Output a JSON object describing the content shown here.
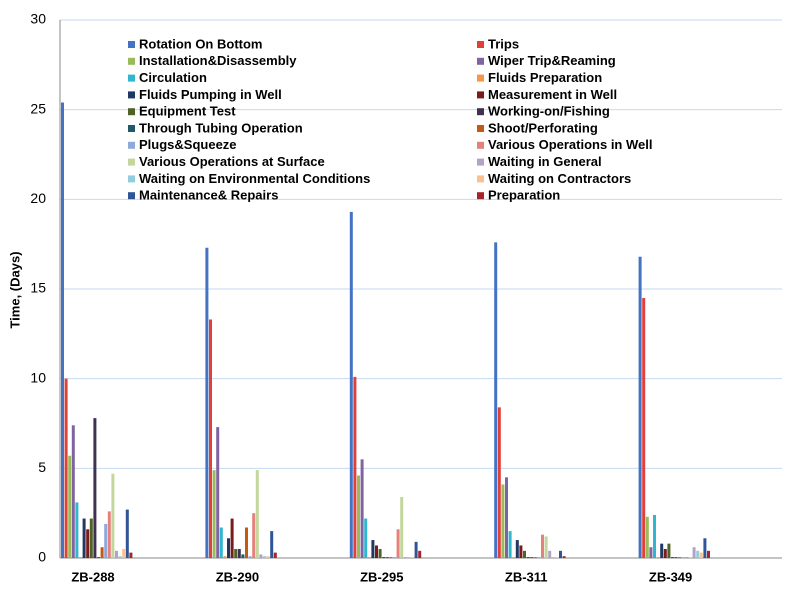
{
  "chart_data": {
    "type": "bar",
    "y_label": "Time, (Days)",
    "categories": [
      "ZB-288",
      "ZB-290",
      "ZB-295",
      "ZB-311",
      "ZB-349"
    ],
    "ylim": [
      0,
      30
    ],
    "yticks": [
      0,
      5,
      10,
      15,
      20,
      25,
      30
    ],
    "grid": true,
    "series": [
      {
        "name": "Rotation On Bottom",
        "color": "#4472c4",
        "values": [
          25.4,
          17.3,
          19.3,
          17.6,
          16.8
        ]
      },
      {
        "name": "Trips",
        "color": "#e0403a",
        "values": [
          10,
          13.3,
          10.1,
          8.4,
          14.5
        ]
      },
      {
        "name": "Installation&Disassembly",
        "color": "#9bbb59",
        "values": [
          5.7,
          4.9,
          4.6,
          4.1,
          2.3
        ]
      },
      {
        "name": "Wiper Trip&Reaming",
        "color": "#8064a2",
        "values": [
          7.4,
          7.3,
          5.5,
          4.5,
          0.6
        ]
      },
      {
        "name": "Circulation",
        "color": "#31b6cf",
        "values": [
          3.1,
          1.7,
          2.2,
          1.5,
          2.4
        ]
      },
      {
        "name": "Fluids Preparation",
        "color": "#f79646",
        "values": [
          0.05,
          0.1,
          0.05,
          0.05,
          0.05
        ]
      },
      {
        "name": "Fluids Pumping in Well",
        "color": "#1f3864",
        "values": [
          2.2,
          1.1,
          1.0,
          1.0,
          0.8
        ]
      },
      {
        "name": "Measurement in Well",
        "color": "#7b1c1c",
        "values": [
          1.6,
          2.2,
          0.7,
          0.7,
          0.5
        ]
      },
      {
        "name": "Equipment Test",
        "color": "#4f6228",
        "values": [
          2.2,
          0.5,
          0.5,
          0.4,
          0.8
        ]
      },
      {
        "name": "Working-on/Fishing",
        "color": "#3f3151",
        "values": [
          7.8,
          0.5,
          0.05,
          0.05,
          0.05
        ]
      },
      {
        "name": "Through Tubing Operation",
        "color": "#215968",
        "values": [
          0.05,
          0.2,
          0.05,
          0.05,
          0.05
        ]
      },
      {
        "name": "Shoot/Perforating",
        "color": "#c65911",
        "values": [
          0.6,
          1.7,
          0.05,
          0.05,
          0.05
        ]
      },
      {
        "name": "Plugs&Squeeze",
        "color": "#8ea9db",
        "values": [
          1.9,
          0.1,
          0.05,
          0.05,
          0.05
        ]
      },
      {
        "name": "Various Operations in Well",
        "color": "#e6807a",
        "values": [
          2.6,
          2.5,
          1.6,
          1.3,
          0.05
        ]
      },
      {
        "name": "Various Operations at Surface",
        "color": "#c3d69b",
        "values": [
          4.7,
          4.9,
          3.4,
          1.2,
          0.05
        ]
      },
      {
        "name": "Waiting in General",
        "color": "#b3a2c7",
        "values": [
          0.4,
          0.2,
          0.05,
          0.4,
          0.6
        ]
      },
      {
        "name": "Waiting on Environmental Conditions",
        "color": "#93cddd",
        "values": [
          0.1,
          0.1,
          0.05,
          0.05,
          0.4
        ]
      },
      {
        "name": "Waiting on Contractors",
        "color": "#fac090",
        "values": [
          0.5,
          0.1,
          0.05,
          0.05,
          0.3
        ]
      },
      {
        "name": "Maintenance& Repairs",
        "color": "#2e5597",
        "values": [
          2.7,
          1.5,
          0.9,
          0.4,
          1.1
        ]
      },
      {
        "name": "Preparation",
        "color": "#a5252a",
        "values": [
          0.3,
          0.3,
          0.4,
          0.1,
          0.4
        ]
      }
    ]
  }
}
